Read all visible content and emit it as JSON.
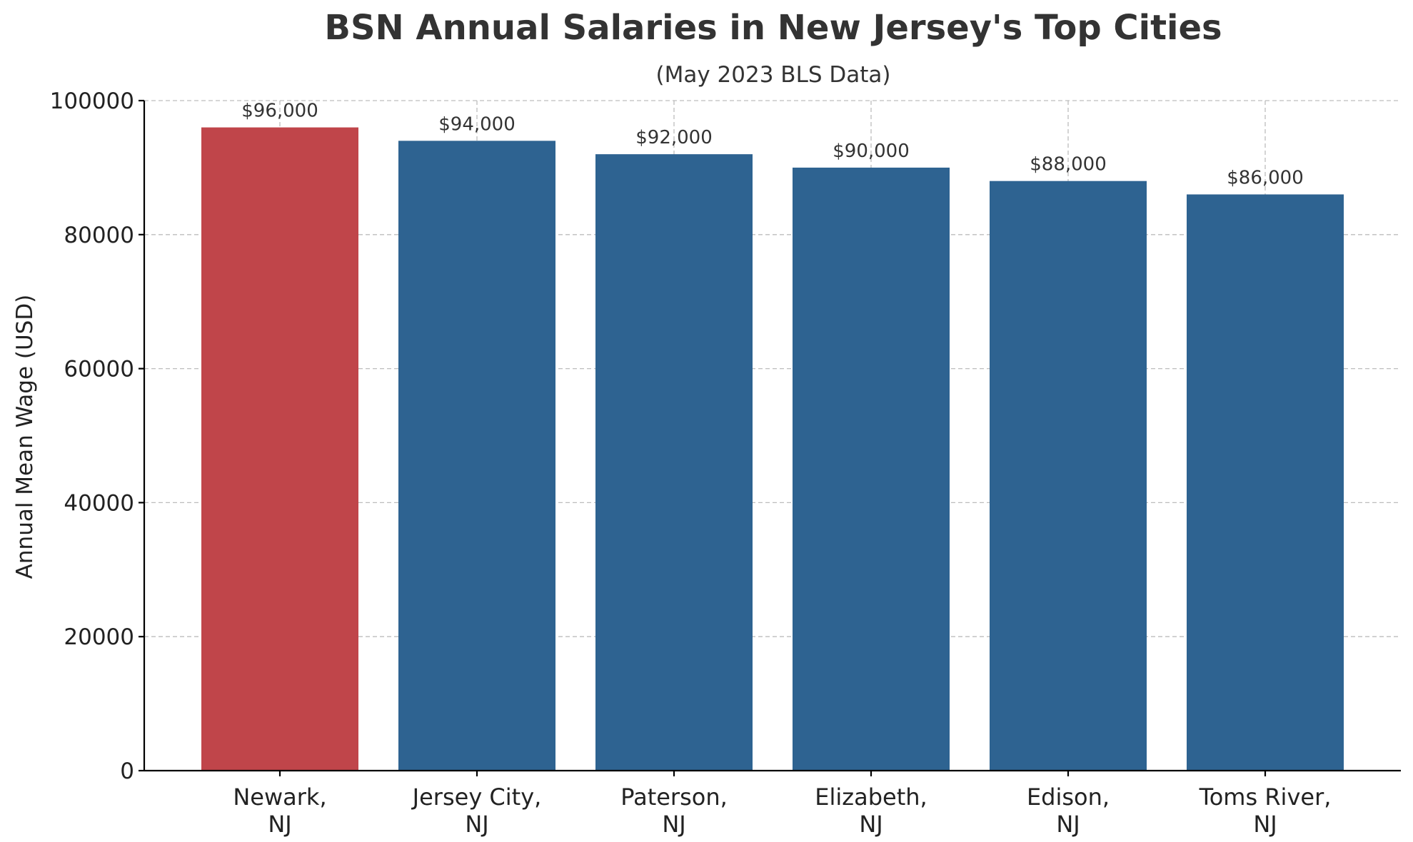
{
  "chart_data": {
    "type": "bar",
    "title": "BSN Annual Salaries in New Jersey's Top Cities",
    "subtitle": "(May 2023 BLS Data)",
    "xlabel": "",
    "ylabel": "Annual Mean Wage (USD)",
    "categories": [
      [
        "Newark,",
        "NJ"
      ],
      [
        "Jersey City,",
        "NJ"
      ],
      [
        "Paterson,",
        "NJ"
      ],
      [
        "Elizabeth,",
        "NJ"
      ],
      [
        "Edison,",
        "NJ"
      ],
      [
        "Toms River,",
        "NJ"
      ]
    ],
    "values": [
      96000,
      94000,
      92000,
      90000,
      88000,
      86000
    ],
    "data_labels": [
      "$96,000",
      "$94,000",
      "$92,000",
      "$90,000",
      "$88,000",
      "$86,000"
    ],
    "bar_colors": [
      "#c0454a",
      "#2e6391",
      "#2e6391",
      "#2e6391",
      "#2e6391",
      "#2e6391"
    ],
    "ylim": [
      0,
      100000
    ],
    "yticks": [
      0,
      20000,
      40000,
      60000,
      80000,
      100000
    ],
    "ytick_labels": [
      "0",
      "20000",
      "40000",
      "60000",
      "80000",
      "100000"
    ],
    "grid": true,
    "legend": "none"
  }
}
